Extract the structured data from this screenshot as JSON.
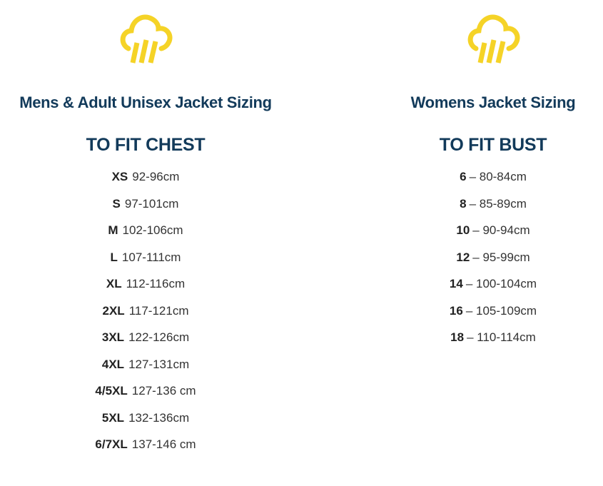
{
  "colors": {
    "icon": "#f5d327",
    "heading": "#123a5a",
    "text": "#333333"
  },
  "mens": {
    "icon": "rain-cloud-icon",
    "title": "Mens & Adult Unisex Jacket Sizing",
    "subtitle": "TO FIT CHEST",
    "rows": [
      {
        "size": "XS",
        "range": "92-96cm"
      },
      {
        "size": "S",
        "range": "97-101cm"
      },
      {
        "size": "M",
        "range": "102-106cm"
      },
      {
        "size": "L",
        "range": "107-111cm"
      },
      {
        "size": "XL",
        "range": "112-116cm"
      },
      {
        "size": "2XL",
        "range": "117-121cm"
      },
      {
        "size": "3XL",
        "range": "122-126cm"
      },
      {
        "size": "4XL",
        "range": "127-131cm"
      },
      {
        "size": "4/5XL",
        "range": "127-136 cm"
      },
      {
        "size": "5XL",
        "range": "132-136cm"
      },
      {
        "size": "6/7XL",
        "range": "137-146 cm"
      }
    ]
  },
  "womens": {
    "icon": "rain-cloud-icon",
    "title": "Womens Jacket Sizing",
    "subtitle": "TO FIT BUST",
    "rows": [
      {
        "size": "6",
        "range": "– 80-84cm"
      },
      {
        "size": "8",
        "range": "– 85-89cm"
      },
      {
        "size": "10",
        "range": "– 90-94cm"
      },
      {
        "size": "12",
        "range": "– 95-99cm"
      },
      {
        "size": "14",
        "range": "– 100-104cm"
      },
      {
        "size": "16",
        "range": "– 105-109cm"
      },
      {
        "size": "18",
        "range": "– 110-114cm"
      }
    ]
  }
}
